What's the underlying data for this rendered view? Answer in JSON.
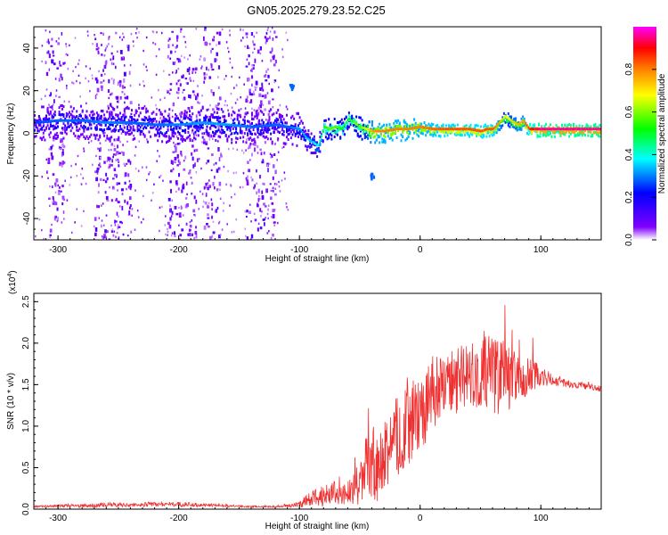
{
  "title": "GN05.2025.279.23.52.C25",
  "chart_data": [
    {
      "type": "heatmap",
      "name": "spectrogram",
      "xlabel": "Height of straight line (km)",
      "ylabel": "Frequency (Hz)",
      "xlim": [
        -320,
        150
      ],
      "ylim": [
        -50,
        50
      ],
      "xticks": [
        "-300",
        "-200",
        "-100",
        "0",
        "100"
      ],
      "xtick_values": [
        -300,
        -200,
        -100,
        0,
        100
      ],
      "yticks": [
        "-40",
        "-20",
        "0",
        "20",
        "40"
      ],
      "ytick_values": [
        -40,
        -20,
        0,
        20,
        40
      ],
      "colorbar": {
        "label": "Normalized spectral amplitude",
        "range": [
          0,
          1
        ],
        "ticks": [
          "0.0",
          "0.2",
          "0.4",
          "0.6",
          "0.8"
        ],
        "tick_values": [
          0.0,
          0.2,
          0.4,
          0.6,
          0.8
        ],
        "colormap": [
          "#ffffff",
          "#8000ff",
          "#0000ff",
          "#00ffff",
          "#00ff00",
          "#ffff00",
          "#ff8000",
          "#ff0000",
          "#ff00ff"
        ]
      },
      "ridge": {
        "x": [
          -320,
          -300,
          -280,
          -260,
          -240,
          -220,
          -200,
          -180,
          -160,
          -140,
          -120,
          -110,
          -100,
          -95,
          -90,
          -85,
          -80,
          -75,
          -70,
          -65,
          -60,
          -55,
          -50,
          -45,
          -40,
          -35,
          -30,
          -20,
          -10,
          0,
          10,
          20,
          30,
          40,
          50,
          55,
          60,
          65,
          70,
          75,
          80,
          85,
          90,
          100,
          110,
          120,
          130,
          140,
          150
        ],
        "y": [
          5,
          6,
          6,
          5,
          5,
          4,
          4,
          5,
          4,
          3,
          4,
          3,
          2,
          -2,
          -4,
          -6,
          3,
          2,
          3,
          2,
          7,
          5,
          3,
          2,
          1,
          1,
          1,
          2,
          2,
          3,
          2,
          2,
          2,
          2,
          1,
          2,
          2,
          5,
          8,
          6,
          4,
          6,
          2,
          2,
          2,
          2,
          2,
          2,
          2
        ],
        "amplitude": [
          0.28,
          0.3,
          0.3,
          0.32,
          0.3,
          0.3,
          0.32,
          0.33,
          0.33,
          0.3,
          0.3,
          0.3,
          0.33,
          0.35,
          0.35,
          0.4,
          0.5,
          0.55,
          0.55,
          0.5,
          0.5,
          0.55,
          0.55,
          0.62,
          0.72,
          0.75,
          0.75,
          0.75,
          0.75,
          0.75,
          0.78,
          0.8,
          0.8,
          0.8,
          0.8,
          0.8,
          0.8,
          0.7,
          0.6,
          0.65,
          0.7,
          0.72,
          0.85,
          0.95,
          0.95,
          0.95,
          0.95,
          0.95,
          0.95
        ]
      },
      "noise_bands_x": [
        [
          -310,
          -295
        ],
        [
          -270,
          -240
        ],
        [
          -210,
          -185
        ],
        [
          -180,
          -165
        ],
        [
          -145,
          -120
        ]
      ],
      "features": [
        {
          "x": -107,
          "y": 22,
          "amplitude": 0.3
        },
        {
          "x": -40,
          "y": -20,
          "amplitude": 0.3
        }
      ]
    },
    {
      "type": "line",
      "name": "snr",
      "xlabel": "Height of straight line (km)",
      "ylabel": "SNR (10 * v/v)",
      "y_multiplier_label": "(x10",
      "y_multiplier_exp": "4",
      "y_multiplier_close": ")",
      "xlim": [
        -320,
        150
      ],
      "ylim": [
        0,
        2.6
      ],
      "xticks": [
        "-300",
        "-200",
        "-100",
        "0",
        "100"
      ],
      "xtick_values": [
        -300,
        -200,
        -100,
        0,
        100
      ],
      "yticks": [
        "0.0",
        "0.5",
        "1.0",
        "1.5",
        "2.0",
        "2.5"
      ],
      "ytick_values": [
        0,
        0.5,
        1.0,
        1.5,
        2.0,
        2.5
      ],
      "color": "#ef3030",
      "series": [
        {
          "x": [
            -320,
            -300,
            -280,
            -260,
            -240,
            -220,
            -200,
            -180,
            -160,
            -140,
            -120,
            -110,
            -100,
            -90,
            -80,
            -70,
            -60,
            -50,
            -40,
            -35,
            -30,
            -25,
            -20,
            -15,
            -10,
            -5,
            0,
            5,
            10,
            15,
            20,
            25,
            30,
            40,
            50,
            60,
            70,
            80,
            90,
            100,
            110,
            120,
            130,
            140,
            150
          ],
          "y": [
            0.03,
            0.04,
            0.04,
            0.05,
            0.05,
            0.06,
            0.06,
            0.05,
            0.04,
            0.03,
            0.03,
            0.04,
            0.06,
            0.12,
            0.18,
            0.2,
            0.18,
            0.35,
            0.55,
            0.45,
            0.6,
            0.75,
            0.85,
            0.95,
            1.0,
            1.05,
            1.15,
            1.25,
            1.4,
            1.45,
            1.5,
            1.52,
            1.55,
            1.6,
            1.62,
            1.62,
            1.6,
            1.58,
            1.6,
            1.6,
            1.55,
            1.52,
            1.5,
            1.48,
            1.45
          ],
          "noise": [
            0.01,
            0.015,
            0.02,
            0.03,
            0.02,
            0.03,
            0.03,
            0.02,
            0.015,
            0.01,
            0.01,
            0.02,
            0.04,
            0.1,
            0.15,
            0.15,
            0.12,
            0.3,
            0.5,
            0.45,
            0.4,
            0.45,
            0.5,
            0.5,
            0.5,
            0.45,
            0.45,
            0.45,
            0.45,
            0.4,
            0.4,
            0.4,
            0.4,
            0.4,
            0.45,
            0.5,
            0.45,
            0.3,
            0.25,
            0.15,
            0.06,
            0.05,
            0.05,
            0.04,
            0.04
          ]
        }
      ]
    }
  ]
}
